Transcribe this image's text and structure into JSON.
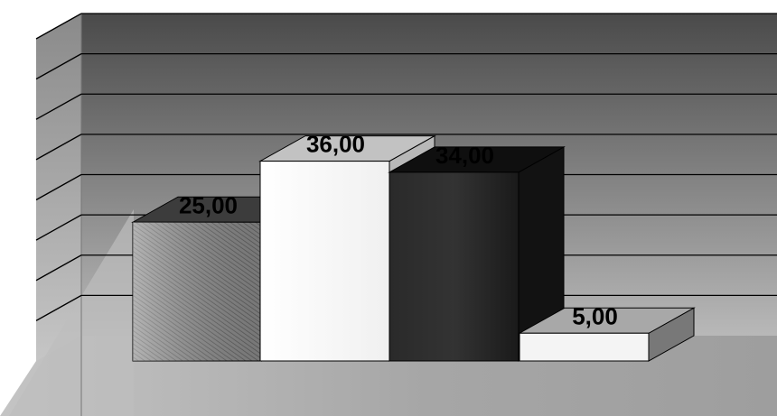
{
  "chart_data": {
    "type": "bar",
    "three_d": true,
    "categories": [
      "",
      "",
      "",
      ""
    ],
    "values": [
      25,
      36,
      34,
      5
    ],
    "data_labels": [
      "25,00",
      "36,00",
      "34,00",
      "5,00"
    ],
    "ylim": [
      0,
      40
    ],
    "grid": true,
    "legend": "none",
    "title": "",
    "xlabel": "",
    "ylabel": ""
  },
  "colors": {
    "page_background": "#ffffff",
    "wall_top": "#4a4a4a",
    "wall_bottom": "#d2d2d2",
    "gridline": "#000000",
    "bar_1": "#8a8a8a",
    "bar_2": "#fafafa",
    "bar_3": "#262626",
    "bar_4": "#f4f4f4"
  }
}
